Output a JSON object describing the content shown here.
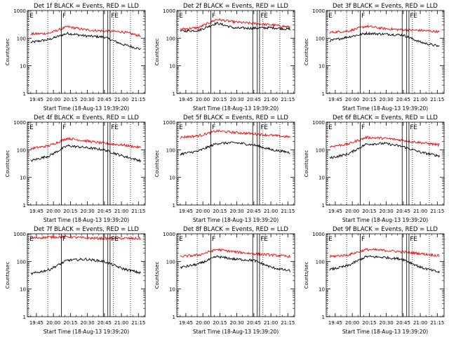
{
  "chart_data": {
    "type": "line",
    "start_time_label": "Start Time (18-Aug-13 19:39:20)",
    "ylabel": "Counts/sec",
    "yscale": "log",
    "ylim": [
      1,
      1000
    ],
    "y_ticks": [
      1,
      10,
      100,
      1000
    ],
    "y_tick_labels": [
      "1",
      "10",
      "100",
      "1000"
    ],
    "x_range_minutes": [
      "19:37",
      "21:21"
    ],
    "x_ticks": [
      "19:45",
      "20:00",
      "20:15",
      "20:30",
      "20:45",
      "21:00",
      "21:15"
    ],
    "markers": [
      {
        "label": "E",
        "time": "19:38",
        "style": "dotted"
      },
      {
        "label": "",
        "time": "19:55",
        "style": "dotted"
      },
      {
        "label": "F",
        "time": "20:07",
        "style": "solid"
      },
      {
        "label": "",
        "time": "20:44",
        "style": "solid"
      },
      {
        "label": "",
        "time": "20:48",
        "style": "solid"
      },
      {
        "label": "F",
        "time": "20:50",
        "style": "solid"
      },
      {
        "label": "E",
        "time": "20:53",
        "style": "dotted"
      },
      {
        "label": "",
        "time": "21:08",
        "style": "dotted"
      }
    ],
    "series_colors": {
      "events": "#000000",
      "lld": "#ff0000"
    },
    "panels": [
      {
        "title": "Det 1f BLACK = Events, RED = LLD",
        "events": [
          70,
          90,
          150,
          120,
          110,
          60,
          40
        ],
        "lld": [
          140,
          150,
          260,
          200,
          180,
          170,
          120
        ]
      },
      {
        "title": "Det 2f BLACK = Events, RED = LLD",
        "events": [
          180,
          190,
          350,
          230,
          230,
          240,
          210
        ],
        "lld": [
          210,
          240,
          480,
          380,
          340,
          300,
          250
        ]
      },
      {
        "title": "Det 3f BLACK = Events, RED = LLD",
        "events": [
          80,
          110,
          150,
          140,
          130,
          70,
          50
        ],
        "lld": [
          160,
          180,
          270,
          220,
          200,
          190,
          170
        ]
      },
      {
        "title": "Det 4f BLACK = Events, RED = LLD",
        "events": [
          40,
          60,
          140,
          120,
          100,
          60,
          40
        ],
        "lld": [
          110,
          140,
          260,
          210,
          170,
          150,
          120
        ]
      },
      {
        "title": "Det 5f BLACK = Events, RED = LLD",
        "events": [
          70,
          90,
          170,
          180,
          150,
          100,
          80
        ],
        "lld": [
          280,
          320,
          480,
          420,
          380,
          330,
          290
        ]
      },
      {
        "title": "Det 6f BLACK = Events, RED = LLD",
        "events": [
          50,
          70,
          160,
          170,
          130,
          80,
          60
        ],
        "lld": [
          130,
          160,
          280,
          260,
          220,
          180,
          150
        ]
      },
      {
        "title": "Det 7f BLACK = Events, RED = LLD",
        "events": [
          35,
          50,
          110,
          120,
          100,
          55,
          38
        ],
        "lld": [
          700,
          750,
          780,
          700,
          680,
          680,
          670
        ]
      },
      {
        "title": "Det 8f BLACK = Events, RED = LLD",
        "events": [
          60,
          80,
          150,
          120,
          110,
          60,
          45
        ],
        "lld": [
          150,
          170,
          270,
          220,
          190,
          170,
          150
        ]
      },
      {
        "title": "Det 9f BLACK = Events, RED = LLD",
        "events": [
          50,
          70,
          150,
          140,
          120,
          60,
          40
        ],
        "lld": [
          150,
          170,
          270,
          250,
          220,
          190,
          160
        ]
      }
    ]
  }
}
